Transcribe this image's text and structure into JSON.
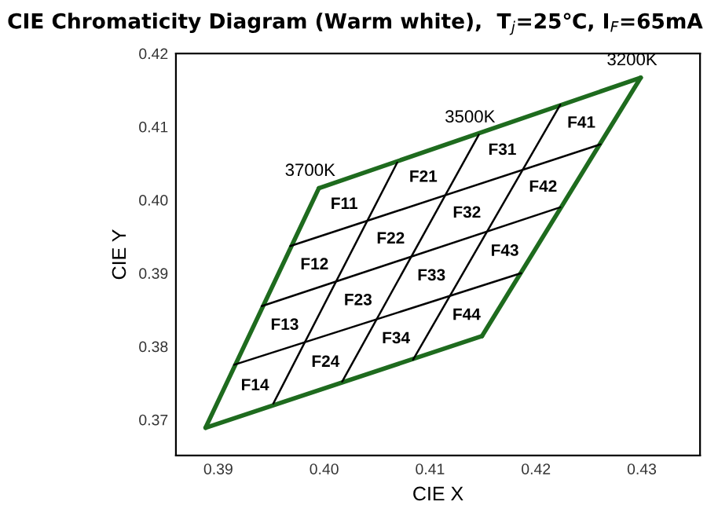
{
  "chart_data": {
    "type": "line",
    "title": "CIE Chromaticity Diagram (Warm white),  T$_{j}$=25℃, I$_{F}$=65mA",
    "xlabel": "CIE X",
    "ylabel": "CIE Y",
    "xlim": [
      0.386,
      0.4355
    ],
    "ylim": [
      0.3651,
      0.42
    ],
    "xticks": [
      0.39,
      {
        "value": 0.4,
        "label": "0.40"
      },
      0.41,
      0.42,
      0.43
    ],
    "yticks": [
      0.37,
      0.38,
      0.39,
      {
        "value": 0.4,
        "label": "0.40"
      },
      0.41,
      0.42
    ],
    "grid": false,
    "legend": false,
    "marker": "none",
    "line_style": "solid",
    "series": [
      {
        "color": "#1e6b1e",
        "x": [
          0.3888,
          0.3995
        ],
        "values": [
          0.3689,
          0.4016
        ]
      },
      {
        "color": "#1e6b1e",
        "x": [
          0.3995,
          0.4299
        ],
        "values": [
          0.4016,
          0.4167
        ]
      },
      {
        "color": "#1e6b1e",
        "x": [
          0.4149,
          0.4299
        ],
        "values": [
          0.3814,
          0.4167
        ]
      },
      {
        "color": "#1e6b1e",
        "x": [
          0.3888,
          0.4149
        ],
        "values": [
          0.3689,
          0.3814
        ]
      },
      {
        "color": "#000000",
        "x": [
          0.3968,
          0.4261
        ],
        "values": [
          0.3937,
          0.4076
        ]
      },
      {
        "color": "#000000",
        "x": [
          0.3941,
          0.4223
        ],
        "values": [
          0.3855,
          0.399
        ]
      },
      {
        "color": "#000000",
        "x": [
          0.3915,
          0.4186
        ],
        "values": [
          0.3775,
          0.39
        ]
      },
      {
        "color": "#000000",
        "x": [
          0.3952,
          0.4069
        ],
        "values": [
          0.3722,
          0.4051
        ]
      },
      {
        "color": "#000000",
        "x": [
          0.4017,
          0.4146
        ],
        "values": [
          0.3752,
          0.4089
        ]
      },
      {
        "color": "#000000",
        "x": [
          0.4084,
          0.4223
        ],
        "values": [
          0.3782,
          0.413
        ]
      }
    ],
    "annotations": [
      {
        "text": "3700K",
        "x": 0.3995,
        "y": 0.4016
      },
      {
        "text": "3500K",
        "x": 0.4146,
        "y": 0.4089
      },
      {
        "text": "3200K",
        "x": 0.4299,
        "y": 0.4167
      },
      "F11",
      "F12",
      "F13",
      "F14",
      "F21",
      "F22",
      "F23",
      "F24",
      "F31",
      "F32",
      "F33",
      "F34",
      "F41",
      "F42",
      "F43",
      "F44"
    ]
  }
}
